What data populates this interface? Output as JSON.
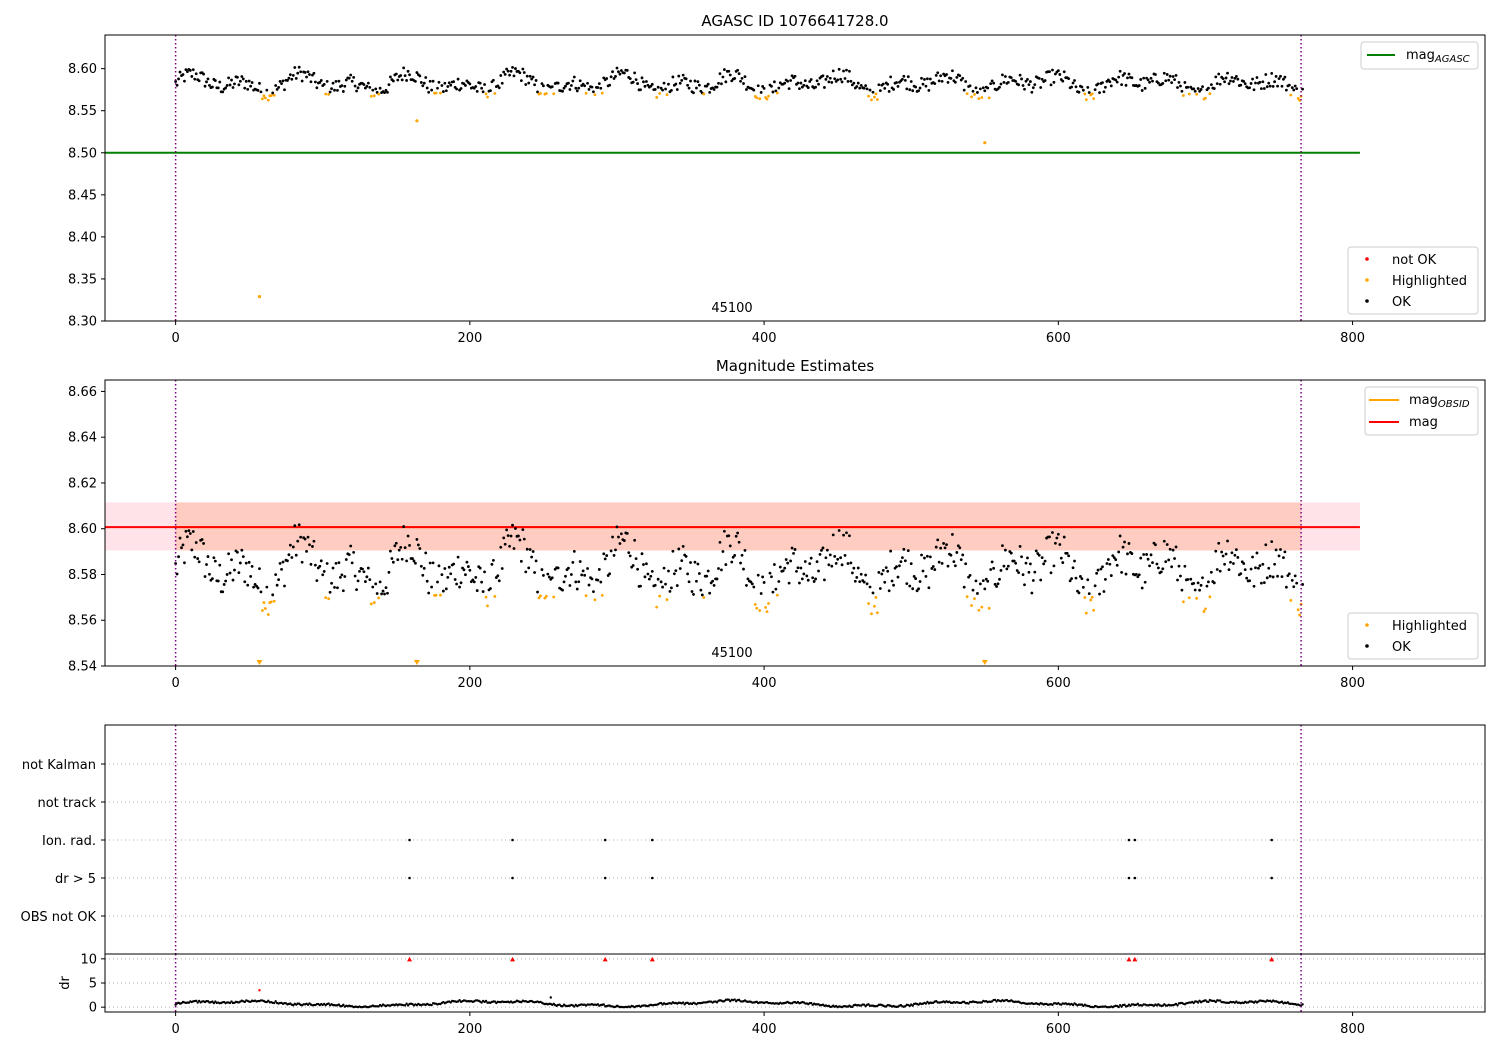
{
  "colors": {
    "ok": "#000000",
    "highlighted": "#ffa500",
    "not_ok": "#ff0000",
    "mag_agasc": "#008000",
    "mag_obsid": "#ffa500",
    "mag": "#ff0000",
    "band": "#ffc0cb",
    "band_inner": "#ffa07a",
    "obs_boundary": "#800080",
    "grid": "#b0b0b0"
  },
  "chart_data": [
    {
      "type": "scatter",
      "title": "AGASC ID 1076641728.0",
      "xlim": [
        -48,
        890
      ],
      "ylim": [
        8.3,
        8.64
      ],
      "xticks": [
        "0",
        "200",
        "400",
        "600",
        "800"
      ],
      "yticks": [
        "8.30",
        "8.35",
        "8.40",
        "8.45",
        "8.50",
        "8.55",
        "8.60"
      ],
      "obs_annotation": "45100",
      "obs_boundaries": [
        0,
        765
      ],
      "hlines": [
        {
          "name": "mag_AGASC",
          "label_main": "mag",
          "label_sub": "AGASC",
          "value": 8.5,
          "x_range": [
            -48,
            805
          ]
        }
      ],
      "legend_top": [
        {
          "label_main": "mag",
          "label_sub": "AGASC",
          "color_key": "mag_agasc"
        }
      ],
      "legend_bottom": [
        {
          "label": "not OK",
          "color_key": "not_ok"
        },
        {
          "label": "Highlighted",
          "color_key": "highlighted"
        },
        {
          "label": "OK",
          "color_key": "ok"
        }
      ],
      "series_model": {
        "n": 767,
        "baseline": 8.582,
        "amplitude": 0.014,
        "period": 37.0
      },
      "outliers": [
        {
          "x": 57,
          "y": 8.329,
          "series": "Highlighted"
        },
        {
          "x": 164,
          "y": 8.538,
          "series": "Highlighted"
        },
        {
          "x": 550,
          "y": 8.512,
          "series": "Highlighted"
        }
      ]
    },
    {
      "type": "scatter",
      "title": "Magnitude Estimates",
      "xlim": [
        -48,
        890
      ],
      "ylim": [
        8.54,
        8.665
      ],
      "xticks": [
        "0",
        "200",
        "400",
        "600",
        "800"
      ],
      "yticks": [
        "8.54",
        "8.56",
        "8.58",
        "8.60",
        "8.62",
        "8.64",
        "8.66"
      ],
      "obs_annotation": "45100",
      "obs_boundaries": [
        0,
        765
      ],
      "band": {
        "y_low": 8.5905,
        "y_high": 8.6115,
        "x_range": [
          -48,
          805
        ],
        "inner_x_range": [
          0,
          765
        ]
      },
      "hlines": [
        {
          "name": "mag_OBSID",
          "value": 8.6007,
          "x_range": [
            0,
            765
          ]
        },
        {
          "name": "mag",
          "value": 8.6007,
          "x_range": [
            -48,
            805
          ]
        }
      ],
      "legend_top": [
        {
          "label_main": "mag",
          "label_sub": "OBSID",
          "color_key": "mag_obsid"
        },
        {
          "label_main": "mag",
          "label_sub": "",
          "color_key": "mag"
        }
      ],
      "legend_bottom": [
        {
          "label": "Highlighted",
          "color_key": "highlighted"
        },
        {
          "label": "OK",
          "color_key": "ok"
        }
      ],
      "clipped_markers_x": [
        57,
        164,
        550
      ]
    },
    {
      "type": "scatter",
      "title": "",
      "xlim": [
        -48,
        890
      ],
      "categories": [
        "not Kalman",
        "not track",
        "Ion. rad.",
        "dr > 5",
        "OBS not OK"
      ],
      "flag_points": {
        "Ion. rad.": [
          159,
          229,
          292,
          324,
          648,
          652,
          745
        ],
        "dr > 5": [
          159,
          229,
          292,
          324,
          648,
          652,
          745
        ]
      },
      "obs_boundaries": [
        0,
        765
      ]
    },
    {
      "type": "scatter",
      "title": "",
      "ylabel": "dr",
      "xlim": [
        -48,
        890
      ],
      "ylim": [
        -1,
        11
      ],
      "xticks": [
        "0",
        "200",
        "400",
        "600",
        "800"
      ],
      "yticks": [
        "0",
        "5",
        "10"
      ],
      "clipped_x": [
        159,
        229,
        292,
        324,
        648,
        652,
        745
      ],
      "outliers": [
        {
          "x": 57,
          "y": 3.5
        },
        {
          "x": 255,
          "y": 2.0
        }
      ],
      "obs_boundaries": [
        0,
        765
      ]
    }
  ]
}
